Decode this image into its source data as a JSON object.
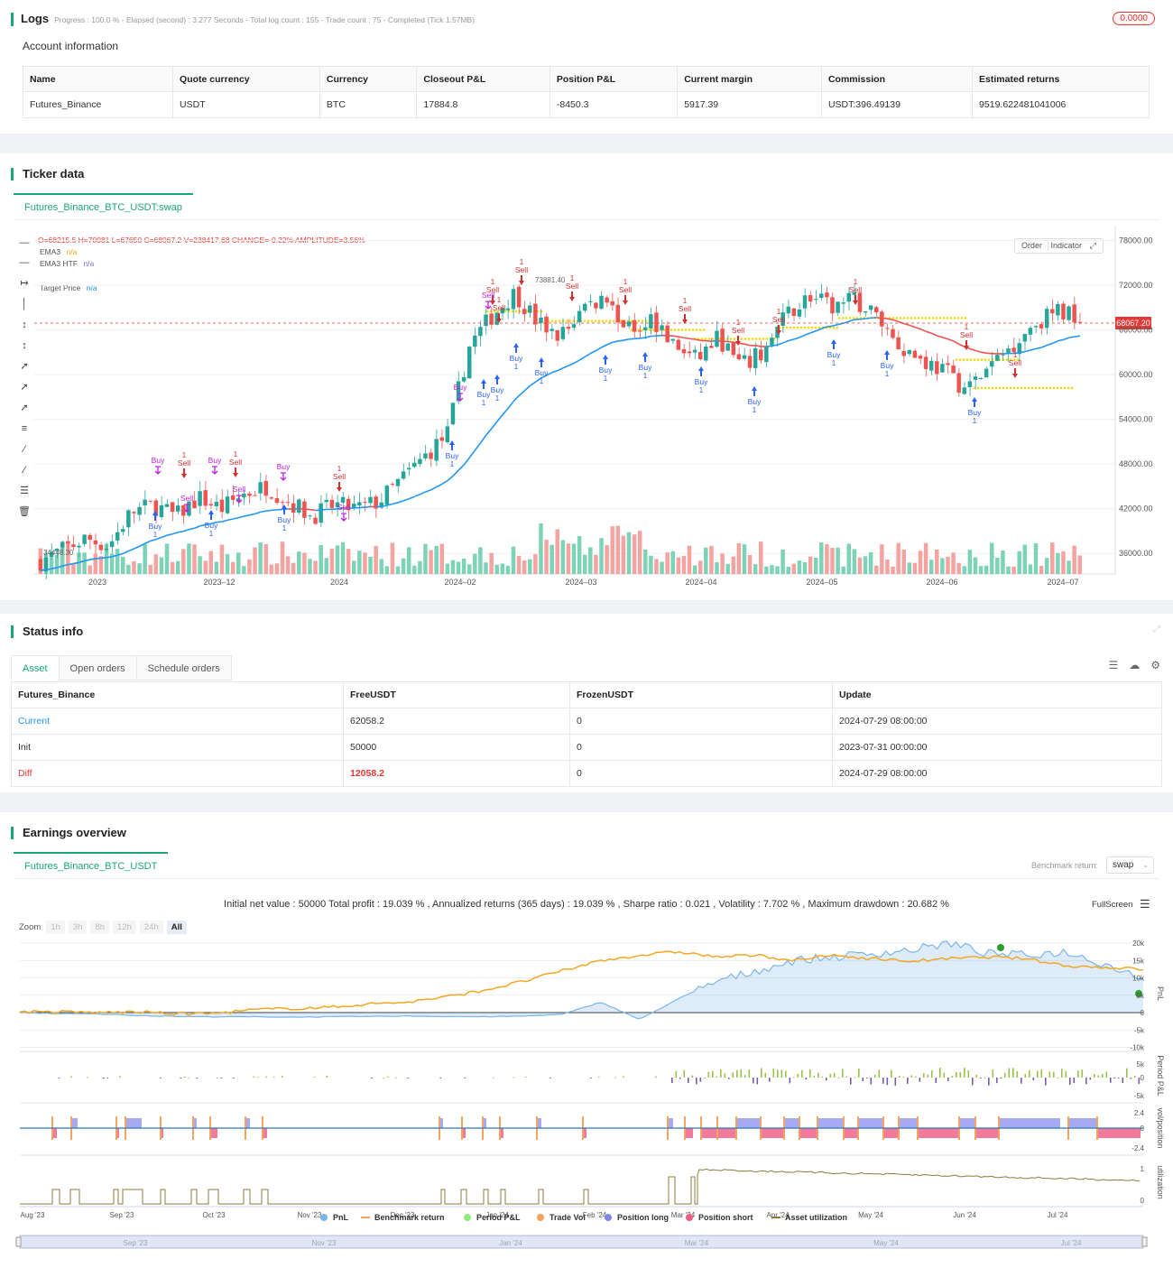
{
  "logs": {
    "title": "Logs",
    "progress": "Progress : 100.0 % - Elapsed (second) : 3.277  Seconds - Total log count : 155 - Trade count : 75 - Completed (Tick 1.57MB)",
    "badge": "0.0000"
  },
  "account": {
    "title": "Account information",
    "headers": [
      "Name",
      "Quote currency",
      "Currency",
      "Closeout P&L",
      "Position P&L",
      "Current margin",
      "Commission",
      "Estimated returns"
    ],
    "row": [
      "Futures_Binance",
      "USDT",
      "BTC",
      "17884.8",
      "-8450.3",
      "5917.39",
      "USDT:396.49139",
      "9519.622481041006"
    ]
  },
  "ticker": {
    "title": "Ticker data",
    "tab": "Futures_Binance_BTC_USDT:swap",
    "ohlc": "O=68215.5 H=70081 L=67650 C=68067.2 V=238417.68 CHANGE=-0.22% AMPLITUDE=3.56%",
    "legend": [
      {
        "name": "EMA3",
        "value": "n/a",
        "color": "#f0a020"
      },
      {
        "name": "EMA3 HTF",
        "value": "n/a",
        "color": "#7b6fd6"
      },
      {
        "name": "Target Price",
        "value": "n/a",
        "color": "#2196f3"
      }
    ],
    "buttons": [
      "Order",
      "Indicator"
    ],
    "price_tag": "68067.20",
    "max_label": "73881.40",
    "min_label": "34448.30",
    "y_ticks": [
      "78000.00",
      "72000.00",
      "66000.00",
      "60000.00",
      "54000.00",
      "48000.00",
      "42000.00",
      "36000.00"
    ],
    "x_ticks": [
      "2023",
      "2023–12",
      "2024",
      "2024–02",
      "2024–03",
      "2024–04",
      "2024–05",
      "2024–06",
      "2024–07"
    ],
    "buy_label": "Buy",
    "sell_label": "Sell",
    "one": "1"
  },
  "status": {
    "title": "Status info",
    "tabs": [
      "Asset",
      "Open orders",
      "Schedule orders"
    ],
    "headers": [
      "Futures_Binance",
      "FreeUSDT",
      "FrozenUSDT",
      "Update"
    ],
    "rows": [
      [
        "Current",
        "62058.2",
        "0",
        "2024-07-29 08:00:00"
      ],
      [
        "Init",
        "50000",
        "0",
        "2023-07-31 00:00:00"
      ],
      [
        "Diff",
        "12058.2",
        "0",
        "2024-07-29 08:00:00"
      ]
    ]
  },
  "earnings": {
    "title": "Earnings overview",
    "tab": "Futures_Binance_BTC_USDT",
    "benchmark_label": "Benchmark return:",
    "benchmark_value": "swap",
    "summary": "Initial net value : 50000 Total profit : 19.039 % , Annualized returns (365 days) : 19.039 % , Sharpe ratio : 0.021 , Volatility : 7.702 % , Maximum drawdown : 20.682 %",
    "fullscreen": "FullScreen",
    "zoom_label": "Zoom",
    "zoom_options": [
      "1h",
      "3h",
      "8h",
      "12h",
      "24h",
      "All"
    ],
    "pnl_ticks": [
      "20k",
      "15k",
      "10k",
      "5k",
      "0",
      "-5k",
      "-10k"
    ],
    "period_ticks": [
      "5k",
      "0",
      "-5k"
    ],
    "pos_ticks": [
      "2.4",
      "0",
      "-2.4"
    ],
    "util_ticks": [
      "1",
      "0"
    ],
    "axis_titles": [
      "PnL",
      "Period P&L",
      "vol/position",
      "utilization"
    ],
    "x_ticks": [
      "Aug '23",
      "Sep '23",
      "Oct '23",
      "Nov '23",
      "Dec '23",
      "Jan '24",
      "Feb '24",
      "Mar '24",
      "Apr '24",
      "May '24",
      "Jun '24",
      "Jul '24"
    ],
    "nav_ticks": [
      "Sep '23",
      "Nov '23",
      "Jan '24",
      "Mar '24",
      "May '24",
      "Jul '24"
    ],
    "legend": [
      {
        "name": "PnL",
        "color": "#7cb5ec"
      },
      {
        "name": "Benchmark return",
        "color": "#f7a35c"
      },
      {
        "name": "Period P&L",
        "color": "#90ed7d"
      },
      {
        "name": "Trade Vol",
        "color": "#f7a35c"
      },
      {
        "name": "Position long",
        "color": "#8085e9"
      },
      {
        "name": "Position short",
        "color": "#f15c80"
      },
      {
        "name": "Asset utilization",
        "color": "#8d7b3c"
      }
    ]
  },
  "chart_data": {
    "type": "candlestick",
    "title": "Futures_Binance_BTC_USDT:swap",
    "ylim": [
      33000,
      80000
    ],
    "approx_close_path": [
      35000,
      36500,
      38000,
      37000,
      41500,
      42500,
      41000,
      43500,
      42000,
      44000,
      45000,
      43000,
      41000,
      42500,
      42000,
      43000,
      46000,
      49000,
      52000,
      64000,
      68000,
      71000,
      67000,
      65000,
      69000,
      70500,
      66000,
      68000,
      64000,
      62000,
      65000,
      61000,
      63000,
      68000,
      70500,
      69000,
      70000,
      68000,
      64000,
      62000,
      60500,
      58000,
      61000,
      64000,
      67000,
      68500,
      68067
    ]
  }
}
